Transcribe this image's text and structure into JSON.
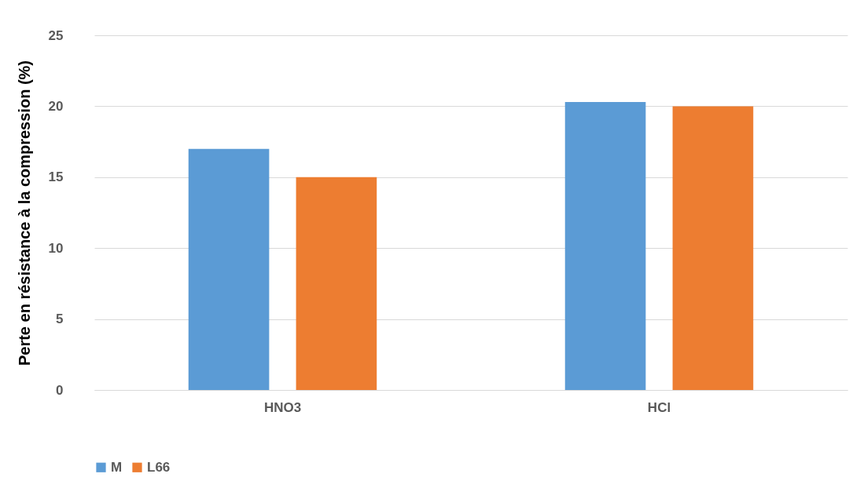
{
  "chart_data": {
    "type": "bar",
    "ylabel": "Perte en résistance à la compression (%)",
    "categories": [
      "HNO3",
      "HCl"
    ],
    "series": [
      {
        "name": "M",
        "color": "#5b9bd5",
        "values": [
          17.0,
          20.3
        ]
      },
      {
        "name": "L66",
        "color": "#ed7d31",
        "values": [
          15.0,
          20.0
        ]
      }
    ],
    "ylim": [
      0,
      25
    ],
    "yticks": [
      0,
      5,
      10,
      15,
      20,
      25
    ],
    "grid": "y",
    "legend": "bottom"
  }
}
